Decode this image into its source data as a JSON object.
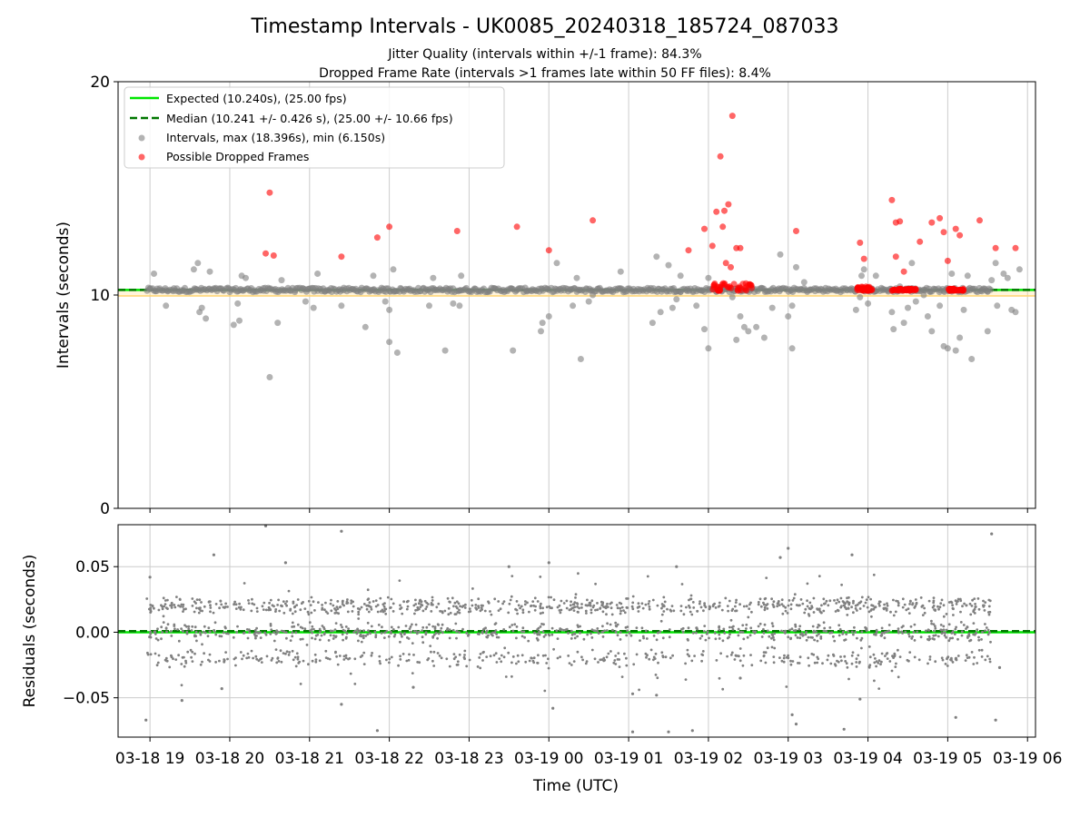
{
  "figure": {
    "title": "Timestamp Intervals - UK0085_20240318_185724_087033",
    "subtitle_1": "Jitter Quality (intervals within +/-1 frame): 84.3%",
    "subtitle_2": "Dropped Frame Rate (intervals >1 frames late within 50 FF files): 8.4%",
    "xlabel": "Time (UTC)"
  },
  "legend": {
    "expected": "Expected (10.240s), (25.00 fps)",
    "median": "Median (10.241 +/- 0.426 s), (25.00 +/- 10.66 fps)",
    "intervals": "Intervals, max (18.396s), min (6.150s)",
    "dropped": "Possible Dropped Frames"
  },
  "colors": {
    "expected": "#00e600",
    "median": "#007700",
    "intervals": "#808080",
    "dropped": "#ff0000",
    "band": "#ffd470",
    "grid": "#cccccc"
  },
  "chart_data": [
    {
      "type": "scatter",
      "ylabel": "Intervals (seconds)",
      "ylim": [
        0,
        20
      ],
      "yticks": [
        "0",
        "10",
        "20"
      ],
      "xticks": [
        "03-18 19",
        "03-18 20",
        "03-18 21",
        "03-18 22",
        "03-18 23",
        "03-19 00",
        "03-19 01",
        "03-19 02",
        "03-19 03",
        "03-19 04",
        "03-19 05",
        "03-19 06"
      ],
      "xlim_hours": [
        18.6,
        30.1
      ],
      "data_range_hours": [
        18.96,
        29.56
      ],
      "expected": 10.24,
      "median": 10.241,
      "grid": "vertical",
      "legend_position": "upper-left",
      "outlier_intervals": [
        [
          19.05,
          11.0
        ],
        [
          19.2,
          9.5
        ],
        [
          19.55,
          11.2
        ],
        [
          19.6,
          11.5
        ],
        [
          19.62,
          9.2
        ],
        [
          19.65,
          9.4
        ],
        [
          19.7,
          8.9
        ],
        [
          19.75,
          11.1
        ],
        [
          20.05,
          8.6
        ],
        [
          20.1,
          9.6
        ],
        [
          20.12,
          8.8
        ],
        [
          20.15,
          10.9
        ],
        [
          20.2,
          10.8
        ],
        [
          20.5,
          6.15
        ],
        [
          20.6,
          8.7
        ],
        [
          20.65,
          10.7
        ],
        [
          20.95,
          9.7
        ],
        [
          21.05,
          9.4
        ],
        [
          21.1,
          11.0
        ],
        [
          21.4,
          9.5
        ],
        [
          21.7,
          8.5
        ],
        [
          21.8,
          10.9
        ],
        [
          21.95,
          9.7
        ],
        [
          22.0,
          7.8
        ],
        [
          22.0,
          9.3
        ],
        [
          22.1,
          7.3
        ],
        [
          22.05,
          11.2
        ],
        [
          22.5,
          9.5
        ],
        [
          22.55,
          10.8
        ],
        [
          22.7,
          7.4
        ],
        [
          22.8,
          9.6
        ],
        [
          22.88,
          9.5
        ],
        [
          22.9,
          10.9
        ],
        [
          23.55,
          7.4
        ],
        [
          23.9,
          8.3
        ],
        [
          23.92,
          8.7
        ],
        [
          24.0,
          9.0
        ],
        [
          24.1,
          11.5
        ],
        [
          24.3,
          9.5
        ],
        [
          24.35,
          10.8
        ],
        [
          24.4,
          7.0
        ],
        [
          24.5,
          9.7
        ],
        [
          24.55,
          10.0
        ],
        [
          24.9,
          11.1
        ],
        [
          25.3,
          8.7
        ],
        [
          25.35,
          11.8
        ],
        [
          25.4,
          9.2
        ],
        [
          25.5,
          11.4
        ],
        [
          25.55,
          9.4
        ],
        [
          25.6,
          9.8
        ],
        [
          25.65,
          10.9
        ],
        [
          25.85,
          9.5
        ],
        [
          25.95,
          8.4
        ],
        [
          26.0,
          7.5
        ],
        [
          26.0,
          10.8
        ],
        [
          26.3,
          9.9
        ],
        [
          26.35,
          7.9
        ],
        [
          26.4,
          9.0
        ],
        [
          26.45,
          8.5
        ],
        [
          26.5,
          8.3
        ],
        [
          26.6,
          8.5
        ],
        [
          26.7,
          8.0
        ],
        [
          26.8,
          9.4
        ],
        [
          26.9,
          11.9
        ],
        [
          27.0,
          9.0
        ],
        [
          27.05,
          7.5
        ],
        [
          27.05,
          9.5
        ],
        [
          27.1,
          11.3
        ],
        [
          27.2,
          10.6
        ],
        [
          27.85,
          9.3
        ],
        [
          27.9,
          9.9
        ],
        [
          27.92,
          10.9
        ],
        [
          27.95,
          11.2
        ],
        [
          28.0,
          9.6
        ],
        [
          28.1,
          10.9
        ],
        [
          28.3,
          9.2
        ],
        [
          28.32,
          8.4
        ],
        [
          28.4,
          10.4
        ],
        [
          28.45,
          8.7
        ],
        [
          28.5,
          9.4
        ],
        [
          28.55,
          11.5
        ],
        [
          28.6,
          9.7
        ],
        [
          28.7,
          10.0
        ],
        [
          28.75,
          9.0
        ],
        [
          28.8,
          8.3
        ],
        [
          28.9,
          9.5
        ],
        [
          28.95,
          7.6
        ],
        [
          29.0,
          7.5
        ],
        [
          29.05,
          11.0
        ],
        [
          29.1,
          7.4
        ],
        [
          29.15,
          8.0
        ],
        [
          29.2,
          9.3
        ],
        [
          29.25,
          10.9
        ],
        [
          29.3,
          7.0
        ],
        [
          29.45,
          10.3
        ],
        [
          29.5,
          8.3
        ],
        [
          29.55,
          10.7
        ],
        [
          29.6,
          11.5
        ],
        [
          29.62,
          9.5
        ],
        [
          29.7,
          11.0
        ],
        [
          29.75,
          10.8
        ],
        [
          29.8,
          9.3
        ],
        [
          29.85,
          9.2
        ],
        [
          29.9,
          11.2
        ]
      ],
      "dropped_frames": [
        [
          20.45,
          11.95
        ],
        [
          20.5,
          14.8
        ],
        [
          20.55,
          11.85
        ],
        [
          21.4,
          11.8
        ],
        [
          21.85,
          12.7
        ],
        [
          22.0,
          13.2
        ],
        [
          22.85,
          13.0
        ],
        [
          23.6,
          13.2
        ],
        [
          24.0,
          12.1
        ],
        [
          24.55,
          13.5
        ],
        [
          25.95,
          13.1
        ],
        [
          25.75,
          12.1
        ],
        [
          26.05,
          12.3
        ],
        [
          26.1,
          13.9
        ],
        [
          26.15,
          16.5
        ],
        [
          26.2,
          13.95
        ],
        [
          26.25,
          14.25
        ],
        [
          26.28,
          11.3
        ],
        [
          26.3,
          18.4
        ],
        [
          26.35,
          12.2
        ],
        [
          26.22,
          11.5
        ],
        [
          26.4,
          12.2
        ],
        [
          26.18,
          13.2
        ],
        [
          27.1,
          13.0
        ],
        [
          27.9,
          12.45
        ],
        [
          27.95,
          11.7
        ],
        [
          28.3,
          14.45
        ],
        [
          28.35,
          13.4
        ],
        [
          28.4,
          13.45
        ],
        [
          28.35,
          11.8
        ],
        [
          28.45,
          11.1
        ],
        [
          28.65,
          12.5
        ],
        [
          28.8,
          13.4
        ],
        [
          28.9,
          13.6
        ],
        [
          28.95,
          12.95
        ],
        [
          29.0,
          11.6
        ],
        [
          29.1,
          13.1
        ],
        [
          29.15,
          12.8
        ],
        [
          29.4,
          13.5
        ],
        [
          29.6,
          12.2
        ],
        [
          29.85,
          12.2
        ]
      ],
      "dropped_clusters": [
        [
          26.05,
          26.55,
          10.2,
          10.55
        ],
        [
          27.85,
          28.05,
          10.2,
          10.4
        ],
        [
          28.3,
          28.6,
          10.2,
          10.3
        ],
        [
          29.0,
          29.2,
          10.2,
          10.3
        ]
      ]
    },
    {
      "type": "scatter",
      "ylabel": "Residuals (seconds)",
      "ylim": [
        -0.08,
        0.082
      ],
      "yticks": [
        "−0.05",
        "0.00",
        "0.05"
      ],
      "ytick_values": [
        -0.05,
        0.0,
        0.05
      ],
      "residual_bands": [
        0.02,
        0.0,
        -0.02
      ],
      "band_spread": 0.004,
      "outlier_residuals": [
        [
          18.95,
          -0.067
        ],
        [
          19.0,
          0.042
        ],
        [
          19.4,
          -0.052
        ],
        [
          19.8,
          0.059
        ],
        [
          19.9,
          -0.043
        ],
        [
          20.45,
          0.081
        ],
        [
          20.7,
          0.053
        ],
        [
          21.4,
          -0.055
        ],
        [
          21.4,
          0.077
        ],
        [
          21.85,
          -0.075
        ],
        [
          22.3,
          -0.042
        ],
        [
          23.5,
          0.05
        ],
        [
          24.05,
          -0.058
        ],
        [
          24.0,
          0.053
        ],
        [
          25.05,
          -0.047
        ],
        [
          25.05,
          -0.076
        ],
        [
          25.35,
          -0.048
        ],
        [
          25.5,
          -0.076
        ],
        [
          25.6,
          0.05
        ],
        [
          25.8,
          -0.075
        ],
        [
          26.4,
          -0.035
        ],
        [
          26.9,
          0.057
        ],
        [
          27.0,
          0.064
        ],
        [
          27.05,
          -0.063
        ],
        [
          27.1,
          -0.07
        ],
        [
          27.7,
          -0.074
        ],
        [
          27.8,
          0.059
        ],
        [
          27.9,
          -0.051
        ],
        [
          29.1,
          -0.065
        ],
        [
          29.55,
          0.075
        ],
        [
          29.6,
          -0.067
        ],
        [
          29.65,
          -0.027
        ]
      ]
    }
  ]
}
